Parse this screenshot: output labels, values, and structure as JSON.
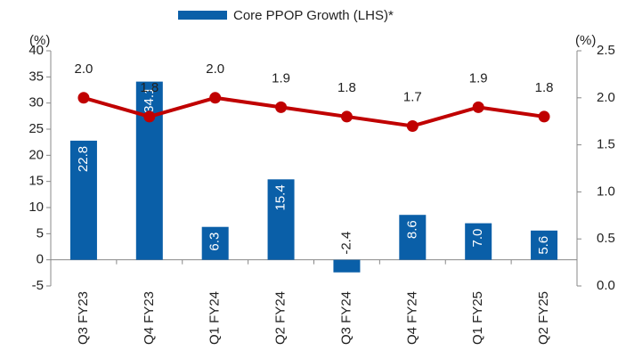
{
  "chart_data": {
    "type": "bar",
    "categories": [
      "Q3 FY23",
      "Q4 FY23",
      "Q1 FY24",
      "Q2 FY24",
      "Q3 FY24",
      "Q4 FY24",
      "Q1 FY25",
      "Q2 FY25"
    ],
    "series": [
      {
        "name": "Core PPOP Growth (LHS)*",
        "color": "#0a5fa8",
        "values": [
          22.8,
          34.1,
          6.3,
          15.4,
          -2.4,
          8.6,
          7.0,
          5.6
        ],
        "value_labels": [
          "22.8",
          "34.1",
          "6.3",
          "15.4",
          "-2.4",
          "8.6",
          "7.0",
          "5.6"
        ]
      },
      {
        "type": "line",
        "axis": "y2",
        "color": "#c00000",
        "values": [
          2.0,
          1.8,
          2.0,
          1.9,
          1.8,
          1.7,
          1.9,
          1.8
        ],
        "value_labels": [
          "2.0",
          "1.8",
          "2.0",
          "1.9",
          "1.8",
          "1.7",
          "1.9",
          "1.8"
        ]
      }
    ],
    "y_unit": "(%)",
    "y2_unit": "(%)",
    "ylim": [
      -5,
      40
    ],
    "yticks": [
      -5,
      0,
      5,
      10,
      15,
      20,
      25,
      30,
      35,
      40
    ],
    "y2lim": [
      0,
      2.5
    ],
    "y2ticks": [
      {
        "value": 0,
        "label": "0.0"
      },
      {
        "value": 0.5,
        "label": "0.5"
      },
      {
        "value": 1,
        "label": "1.0"
      },
      {
        "value": 1.5,
        "label": "1.5"
      },
      {
        "value": 2,
        "label": "2.0"
      },
      {
        "value": 2.5,
        "label": "2.5"
      }
    ],
    "legend": "top"
  }
}
